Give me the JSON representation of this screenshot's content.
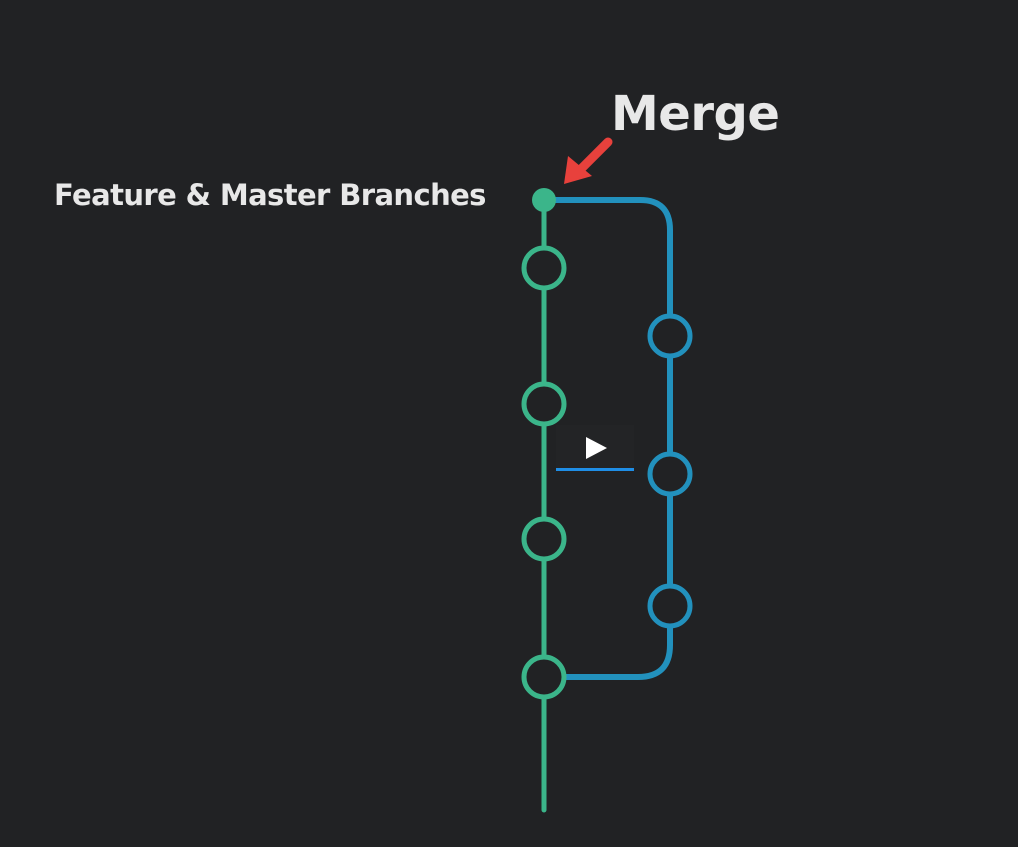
{
  "video": {
    "labels": {
      "branches": "Feature & Master Branches",
      "merge": "Merge"
    },
    "colors": {
      "master_branch": "#3bb58a",
      "feature_branch": "#2291bd",
      "merge_arrow": "#e8413c",
      "background": "#212224",
      "text": "#e8e8e8"
    },
    "player": {
      "play_icon": "play-icon",
      "progress_fraction": 1.0
    }
  }
}
